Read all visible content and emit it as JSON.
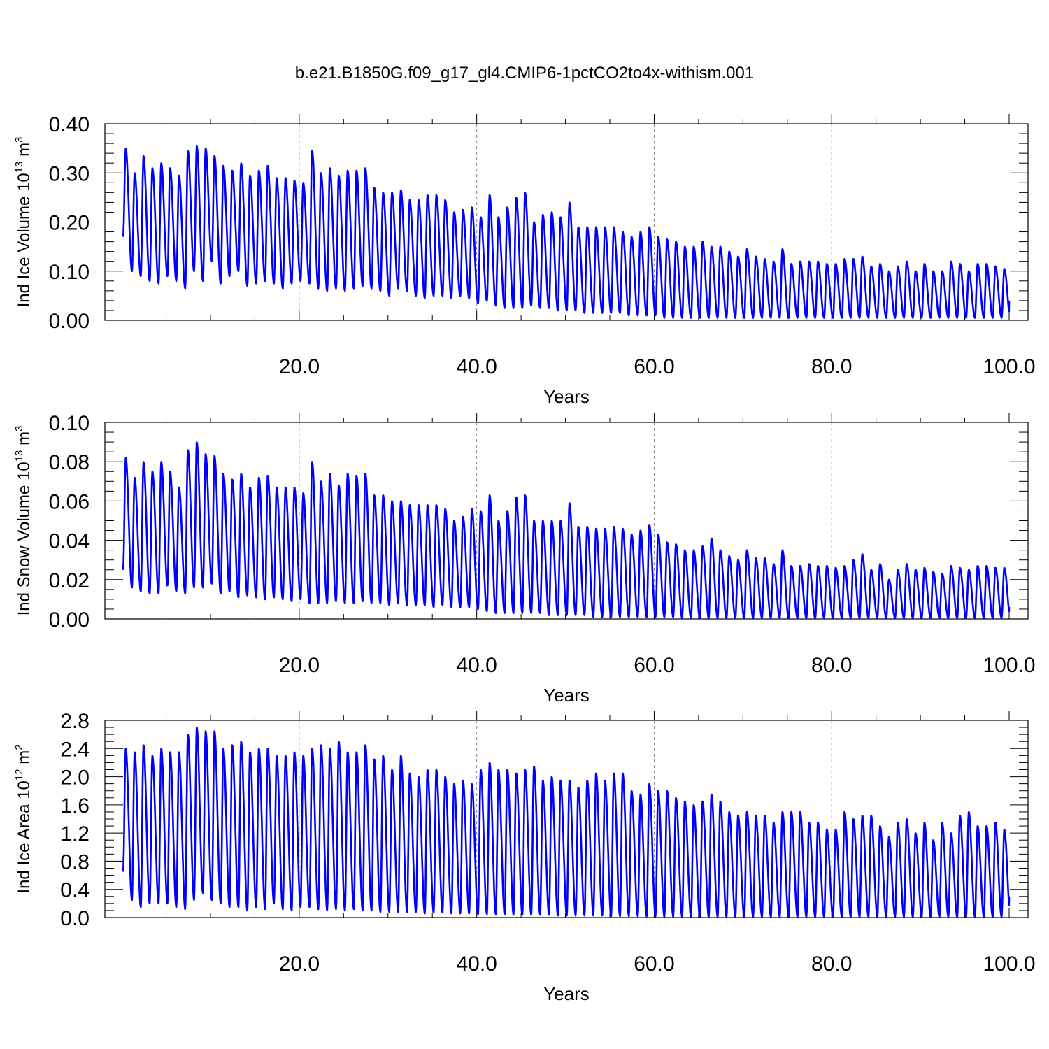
{
  "title": "b.e21.B1850G.f09_g17_gl4.CMIP6-1pctCO2to4x-withism.001",
  "line_color": "#0000ff",
  "chart_data": [
    {
      "type": "line",
      "title": "b.e21.B1850G.f09_g17_gl4.CMIP6-1pctCO2to4x-withism.001",
      "xlabel": "Years",
      "ylabel": {
        "prefix": "Ind Ice Volume 10",
        "exp": "13",
        "unit": " m",
        "unit_exp": "3"
      },
      "xlim": [
        0.15,
        100.0
      ],
      "ylim": [
        0.0,
        0.4
      ],
      "xticks": [
        "20.0",
        "40.0",
        "60.0",
        "80.0",
        "100.0"
      ],
      "yticks": [
        "0.00",
        "0.10",
        "0.20",
        "0.30",
        "0.40"
      ],
      "grid": "dashed vertical at major x ticks",
      "series": [
        {
          "peaks": [
            0.35,
            0.3,
            0.335,
            0.31,
            0.32,
            0.31,
            0.295,
            0.345,
            0.355,
            0.35,
            0.335,
            0.315,
            0.305,
            0.32,
            0.295,
            0.305,
            0.315,
            0.29,
            0.29,
            0.285,
            0.28,
            0.345,
            0.3,
            0.31,
            0.295,
            0.305,
            0.305,
            0.31,
            0.27,
            0.26,
            0.26,
            0.265,
            0.245,
            0.245,
            0.255,
            0.255,
            0.245,
            0.22,
            0.225,
            0.23,
            0.21,
            0.255,
            0.21,
            0.23,
            0.25,
            0.26,
            0.2,
            0.215,
            0.22,
            0.21,
            0.24,
            0.19,
            0.19,
            0.19,
            0.19,
            0.19,
            0.18,
            0.17,
            0.18,
            0.19,
            0.17,
            0.165,
            0.16,
            0.15,
            0.15,
            0.16,
            0.15,
            0.15,
            0.14,
            0.13,
            0.145,
            0.13,
            0.125,
            0.12,
            0.145,
            0.115,
            0.12,
            0.12,
            0.12,
            0.115,
            0.115,
            0.125,
            0.125,
            0.13,
            0.11,
            0.115,
            0.1,
            0.11,
            0.12,
            0.1,
            0.115,
            0.1,
            0.1,
            0.12,
            0.115,
            0.1,
            0.115,
            0.115,
            0.11,
            0.105
          ],
          "troughs": [
            0.1,
            0.09,
            0.08,
            0.075,
            0.09,
            0.08,
            0.065,
            0.1,
            0.08,
            0.12,
            0.075,
            0.09,
            0.1,
            0.07,
            0.075,
            0.08,
            0.075,
            0.065,
            0.075,
            0.08,
            0.075,
            0.065,
            0.06,
            0.065,
            0.06,
            0.065,
            0.07,
            0.065,
            0.06,
            0.05,
            0.065,
            0.06,
            0.05,
            0.045,
            0.05,
            0.05,
            0.045,
            0.05,
            0.045,
            0.035,
            0.04,
            0.03,
            0.025,
            0.025,
            0.025,
            0.03,
            0.025,
            0.025,
            0.02,
            0.02,
            0.02,
            0.015,
            0.015,
            0.015,
            0.015,
            0.015,
            0.01,
            0.01,
            0.01,
            0.01,
            0.005,
            0.005,
            0.005,
            0.005,
            0.005,
            0.005,
            0.005,
            0.005,
            0.005,
            0.005,
            0.005,
            0.005,
            0.005,
            0.005,
            0.005,
            0.005,
            0.005,
            0.005,
            0.005,
            0.005,
            0.005,
            0.005,
            0.005,
            0.005,
            0.005,
            0.005,
            0.005,
            0.005,
            0.005,
            0.005,
            0.005,
            0.005,
            0.005,
            0.005,
            0.005,
            0.005,
            0.005,
            0.005,
            0.005,
            0.005
          ],
          "start": 0.17,
          "end": 0.04
        }
      ]
    },
    {
      "type": "line",
      "title": "",
      "xlabel": "Years",
      "ylabel": {
        "prefix": "Ind Snow Volume 10",
        "exp": "13",
        "unit": " m",
        "unit_exp": "3"
      },
      "xlim": [
        0.15,
        100.0
      ],
      "ylim": [
        0.0,
        0.1
      ],
      "xticks": [
        "20.0",
        "40.0",
        "60.0",
        "80.0",
        "100.0"
      ],
      "yticks": [
        "0.00",
        "0.02",
        "0.04",
        "0.06",
        "0.08",
        "0.10"
      ],
      "grid": "dashed vertical at major x ticks",
      "series": [
        {
          "peaks": [
            0.082,
            0.072,
            0.08,
            0.075,
            0.08,
            0.075,
            0.067,
            0.086,
            0.09,
            0.084,
            0.083,
            0.074,
            0.071,
            0.074,
            0.067,
            0.072,
            0.073,
            0.067,
            0.067,
            0.067,
            0.064,
            0.08,
            0.07,
            0.074,
            0.068,
            0.074,
            0.073,
            0.074,
            0.063,
            0.063,
            0.06,
            0.06,
            0.058,
            0.058,
            0.058,
            0.058,
            0.056,
            0.05,
            0.052,
            0.056,
            0.055,
            0.063,
            0.05,
            0.055,
            0.062,
            0.063,
            0.05,
            0.05,
            0.05,
            0.05,
            0.059,
            0.047,
            0.047,
            0.046,
            0.046,
            0.047,
            0.046,
            0.043,
            0.045,
            0.048,
            0.043,
            0.039,
            0.038,
            0.035,
            0.035,
            0.037,
            0.041,
            0.035,
            0.032,
            0.03,
            0.035,
            0.031,
            0.031,
            0.028,
            0.035,
            0.027,
            0.027,
            0.028,
            0.027,
            0.027,
            0.026,
            0.027,
            0.03,
            0.033,
            0.025,
            0.028,
            0.02,
            0.025,
            0.028,
            0.025,
            0.026,
            0.024,
            0.023,
            0.027,
            0.026,
            0.025,
            0.027,
            0.027,
            0.026,
            0.026
          ],
          "troughs": [
            0.016,
            0.014,
            0.013,
            0.013,
            0.017,
            0.014,
            0.013,
            0.016,
            0.016,
            0.018,
            0.013,
            0.014,
            0.011,
            0.012,
            0.011,
            0.01,
            0.011,
            0.01,
            0.009,
            0.01,
            0.008,
            0.008,
            0.008,
            0.009,
            0.008,
            0.008,
            0.009,
            0.008,
            0.008,
            0.007,
            0.008,
            0.007,
            0.007,
            0.007,
            0.006,
            0.007,
            0.006,
            0.006,
            0.006,
            0.005,
            0.004,
            0.003,
            0.003,
            0.003,
            0.003,
            0.003,
            0.003,
            0.002,
            0.002,
            0.002,
            0.002,
            0.002,
            0.001,
            0.001,
            0.001,
            0.001,
            0.001,
            0.001,
            0.001,
            0.001,
            0.001,
            0.001,
            0.0005,
            0.0005,
            0.0005,
            0.0005,
            0.0005,
            0.0005,
            0.0005,
            0.0005,
            0.0005,
            0.0005,
            0.0005,
            0.0005,
            0.0005,
            0.0005,
            0.0005,
            0.0005,
            0.0005,
            0.0005,
            0.0005,
            0.0005,
            0.0005,
            0.0005,
            0.0005,
            0.0005,
            0.0005,
            0.0005,
            0.0005,
            0.0005,
            0.0005,
            0.0005,
            0.0005,
            0.0005,
            0.0005,
            0.0005,
            0.0005,
            0.0005,
            0.0005,
            0.0005
          ],
          "start": 0.025,
          "end": 0.006
        }
      ]
    },
    {
      "type": "line",
      "title": "",
      "xlabel": "Years",
      "ylabel": {
        "prefix": "Ind Ice Area 10",
        "exp": "12",
        "unit": " m",
        "unit_exp": "2"
      },
      "xlim": [
        0.15,
        100.0
      ],
      "ylim": [
        0.0,
        2.8
      ],
      "xticks": [
        "20.0",
        "40.0",
        "60.0",
        "80.0",
        "100.0"
      ],
      "yticks": [
        "0.0",
        "0.4",
        "0.8",
        "1.2",
        "1.6",
        "2.0",
        "2.4",
        "2.8"
      ],
      "grid": "dashed vertical at major x ticks",
      "series": [
        {
          "peaks": [
            2.4,
            2.35,
            2.45,
            2.3,
            2.4,
            2.35,
            2.35,
            2.6,
            2.7,
            2.65,
            2.65,
            2.4,
            2.45,
            2.5,
            2.35,
            2.4,
            2.4,
            2.3,
            2.3,
            2.35,
            2.3,
            2.4,
            2.45,
            2.4,
            2.5,
            2.35,
            2.35,
            2.45,
            2.25,
            2.3,
            2.1,
            2.3,
            2.05,
            2.0,
            2.1,
            2.1,
            2.0,
            1.9,
            1.95,
            1.9,
            2.1,
            2.2,
            2.1,
            2.1,
            2.05,
            2.1,
            2.15,
            1.95,
            2.0,
            1.95,
            1.95,
            1.85,
            1.95,
            2.05,
            1.95,
            2.05,
            2.05,
            1.8,
            1.75,
            1.9,
            1.8,
            1.8,
            1.7,
            1.65,
            1.6,
            1.65,
            1.75,
            1.65,
            1.5,
            1.45,
            1.5,
            1.45,
            1.45,
            1.35,
            1.5,
            1.5,
            1.5,
            1.35,
            1.35,
            1.25,
            1.25,
            1.5,
            1.4,
            1.45,
            1.45,
            1.3,
            1.15,
            1.35,
            1.4,
            1.2,
            1.35,
            1.1,
            1.35,
            1.2,
            1.45,
            1.5,
            1.3,
            1.3,
            1.35,
            1.25
          ],
          "troughs": [
            0.25,
            0.15,
            0.2,
            0.2,
            0.2,
            0.15,
            0.12,
            0.25,
            0.35,
            0.25,
            0.2,
            0.15,
            0.15,
            0.1,
            0.15,
            0.12,
            0.2,
            0.12,
            0.1,
            0.15,
            0.15,
            0.12,
            0.1,
            0.12,
            0.1,
            0.12,
            0.1,
            0.1,
            0.08,
            0.08,
            0.08,
            0.08,
            0.08,
            0.06,
            0.07,
            0.07,
            0.06,
            0.06,
            0.06,
            0.05,
            0.05,
            0.05,
            0.05,
            0.04,
            0.04,
            0.04,
            0.04,
            0.04,
            0.03,
            0.03,
            0.03,
            0.03,
            0.03,
            0.03,
            0.02,
            0.02,
            0.02,
            0.02,
            0.02,
            0.02,
            0.01,
            0.01,
            0.01,
            0.01,
            0.01,
            0.01,
            0.01,
            0.01,
            0.01,
            0.01,
            0.01,
            0.01,
            0.01,
            0.01,
            0.01,
            0.01,
            0.01,
            0.01,
            0.01,
            0.01,
            0.01,
            0.01,
            0.01,
            0.01,
            0.01,
            0.01,
            0.01,
            0.01,
            0.01,
            0.01,
            0.01,
            0.01,
            0.01,
            0.01,
            0.01,
            0.01,
            0.01,
            0.01,
            0.01,
            0.01
          ],
          "start": 0.65,
          "end": 0.3
        }
      ]
    }
  ]
}
